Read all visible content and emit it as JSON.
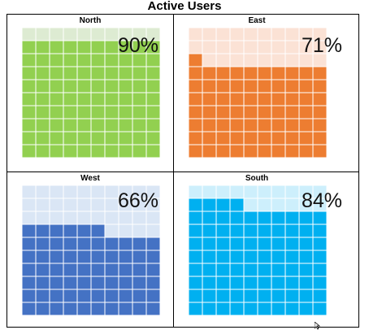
{
  "title": "Active Users",
  "chart_data": {
    "type": "waffle",
    "grid": [
      10,
      10
    ],
    "charts": [
      {
        "region": "North",
        "value": 90,
        "label": "90%",
        "fill_color": "#92D050",
        "empty_color": "#DDEBD2"
      },
      {
        "region": "East",
        "value": 71,
        "label": "71%",
        "fill_color": "#ED7D31",
        "empty_color": "#FBE2D5"
      },
      {
        "region": "West",
        "value": 66,
        "label": "66%",
        "fill_color": "#4472C4",
        "empty_color": "#DAE6F5"
      },
      {
        "region": "South",
        "value": 84,
        "label": "84%",
        "fill_color": "#00B0F0",
        "empty_color": "#CDEFFC"
      }
    ]
  }
}
